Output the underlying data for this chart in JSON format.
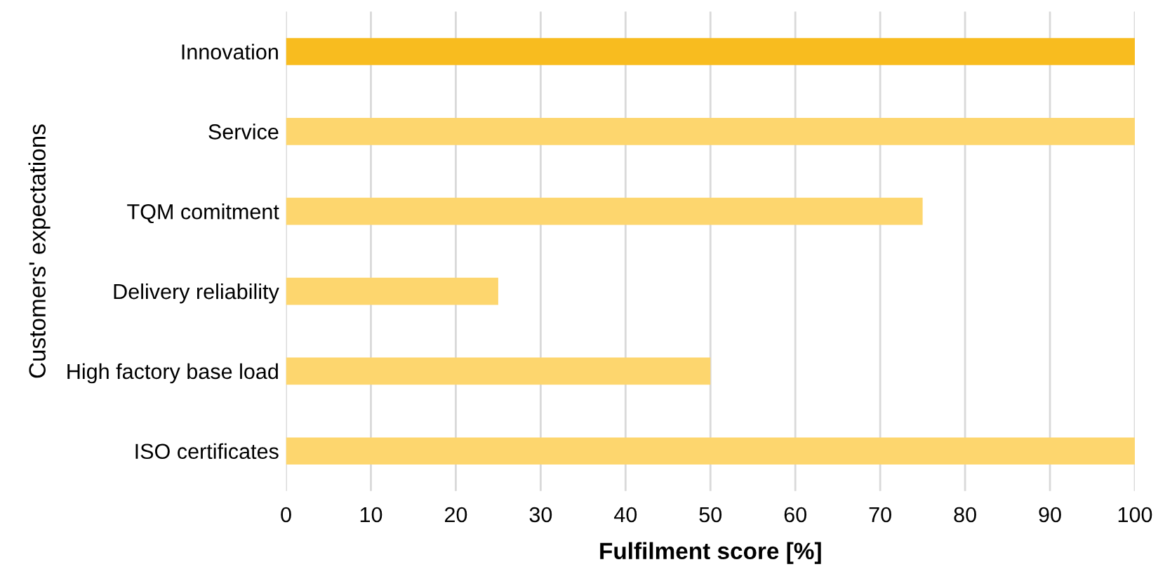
{
  "chart_data": {
    "type": "bar",
    "orientation": "horizontal",
    "xlabel": "Fulfilment score [%]",
    "ylabel": "Customers' expectations",
    "categories": [
      "Innovation",
      "Service",
      "TQM comitment",
      "Delivery reliability",
      "High factory base load",
      "ISO certificates"
    ],
    "values": [
      100,
      100,
      75,
      25,
      50,
      100
    ],
    "colors": [
      "#f8bc1f",
      "#fdd66e",
      "#fdd66e",
      "#fdd66e",
      "#fdd66e",
      "#fdd66e"
    ],
    "xlim": [
      0,
      100
    ],
    "xticks": [
      0,
      10,
      20,
      30,
      40,
      50,
      60,
      70,
      80,
      90,
      100
    ],
    "grid": "x"
  }
}
